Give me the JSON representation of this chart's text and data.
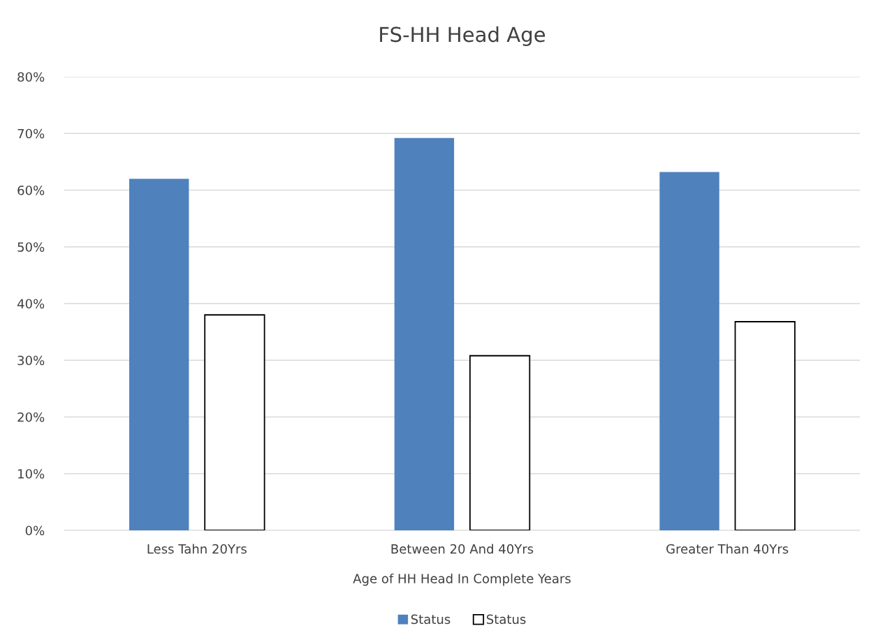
{
  "chart_data": {
    "type": "bar",
    "title": "FS-HH Head Age",
    "xlabel": "Age of HH Head In Complete Years",
    "categories": [
      "Less Tahn 20Yrs",
      "Between 20 And 40Yrs",
      "Greater Than 40Yrs"
    ],
    "series": [
      {
        "name": "Status",
        "color": "#4f81bd",
        "values": [
          62.0,
          69.2,
          63.2
        ]
      },
      {
        "name": "Status",
        "color": "#ffffff",
        "values": [
          38.0,
          30.8,
          36.8
        ]
      }
    ],
    "ylim": [
      0,
      80
    ],
    "yticks": [
      {
        "value": 0,
        "label": "0%"
      },
      {
        "value": 10,
        "label": "10%"
      },
      {
        "value": 20,
        "label": "20%"
      },
      {
        "value": 30,
        "label": "30%"
      },
      {
        "value": 40,
        "label": "40%"
      },
      {
        "value": 50,
        "label": "50%"
      },
      {
        "value": 60,
        "label": "60%"
      },
      {
        "value": 70,
        "label": "70%"
      },
      {
        "value": 80,
        "label": "80%"
      }
    ],
    "grid": "y",
    "legend": "bottom"
  }
}
